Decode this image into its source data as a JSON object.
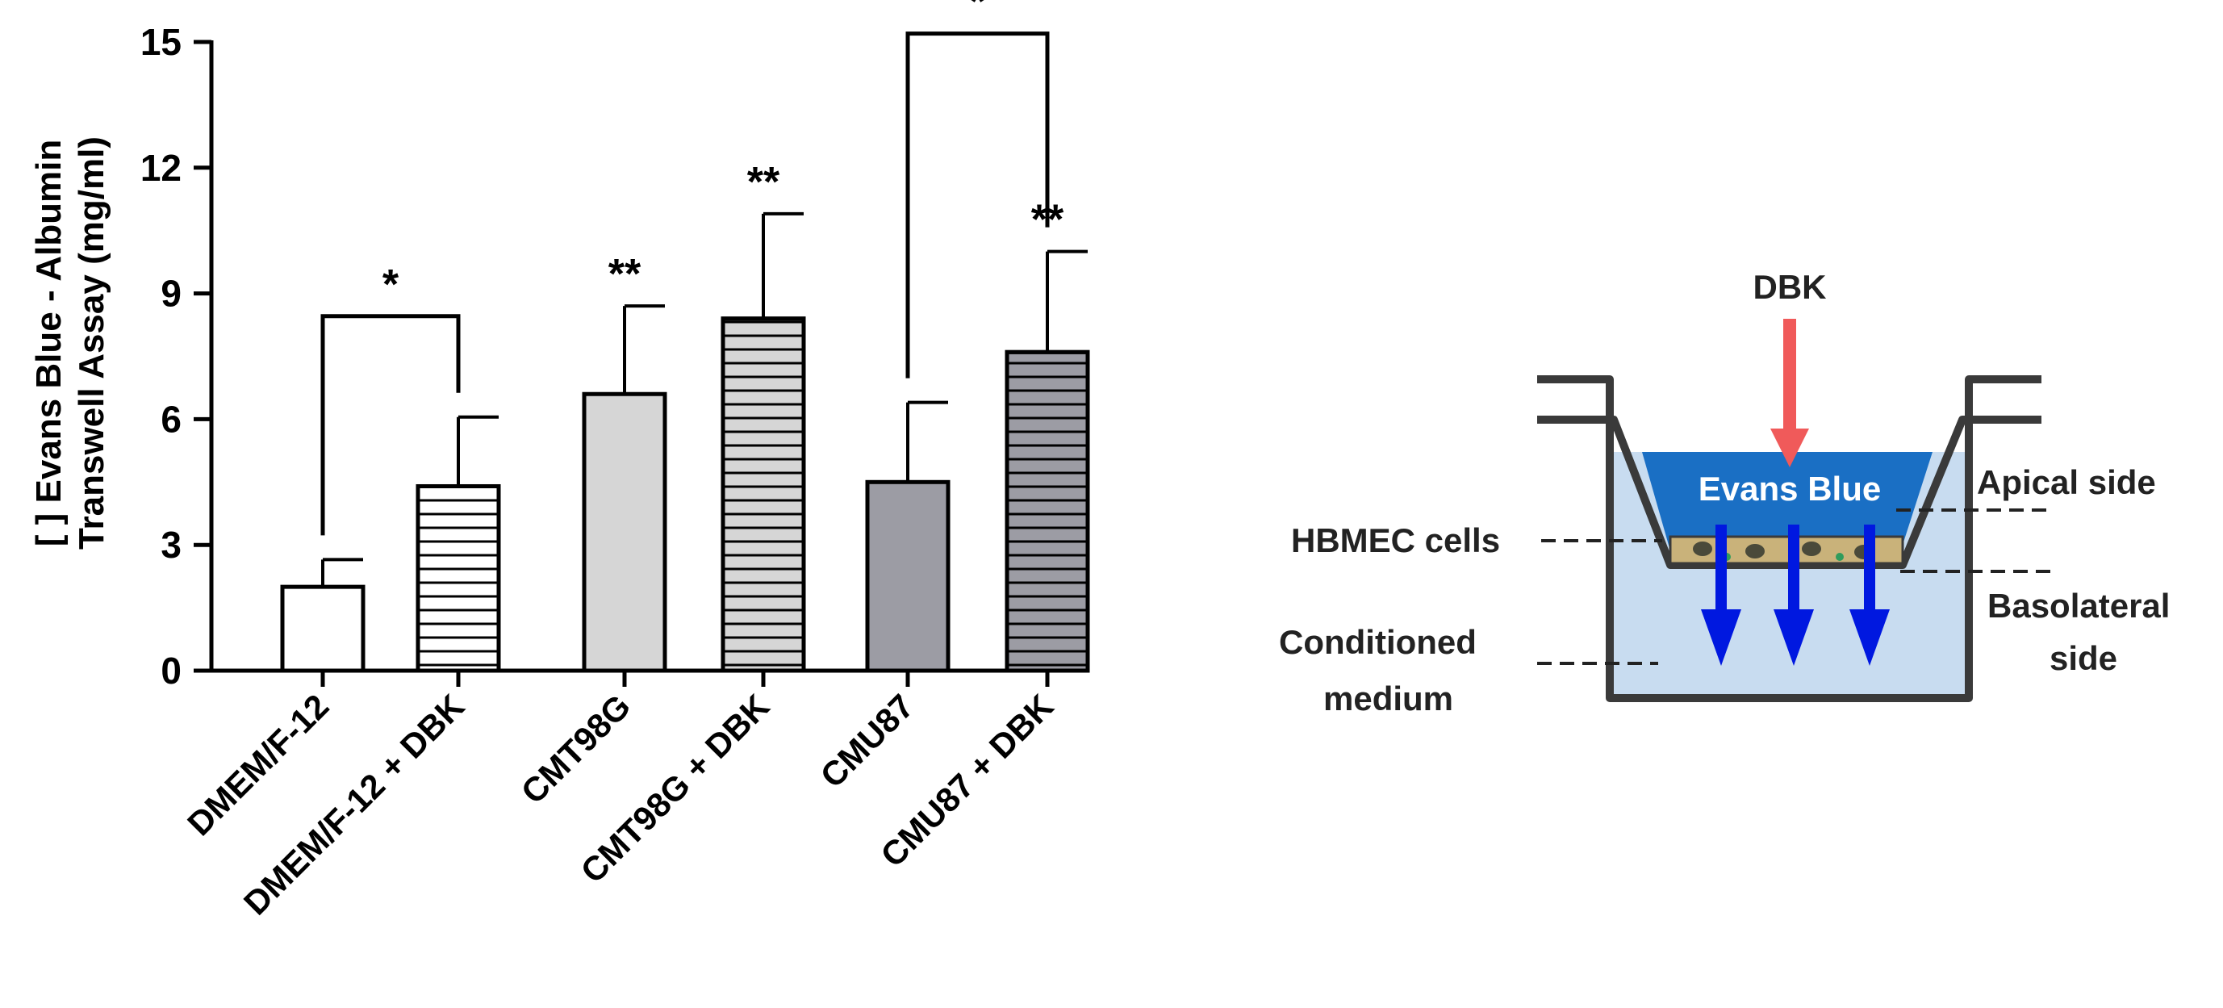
{
  "chart_data": {
    "type": "bar",
    "categories": [
      "DMEM/F-12",
      "DMEM/F-12 + DBK",
      "CMT98G",
      "CMT98G + DBK",
      "CMU87",
      "CMU87 + DBK"
    ],
    "values": [
      2.0,
      4.4,
      6.6,
      8.4,
      4.5,
      7.6
    ],
    "errors": [
      0.65,
      1.65,
      2.1,
      2.5,
      1.9,
      2.4
    ],
    "ylabel_line1": "[ ] Evans Blue - Albumin",
    "ylabel_line2": "Transwell Assay (mg/ml)",
    "ylim": [
      0,
      15
    ],
    "yticks": [
      "0",
      "3",
      "6",
      "9",
      "12",
      "15"
    ],
    "significance_marks": [
      "",
      "",
      "**",
      "**",
      "",
      "**"
    ],
    "brackets": [
      {
        "from": "DMEM/F-12",
        "to": "DMEM/F-12 + DBK",
        "label": "*"
      },
      {
        "from": "CMU87",
        "to": "CMU87 + DBK",
        "label": "*"
      }
    ],
    "bar_styles": [
      {
        "fill": "#ffffff",
        "hatch": false
      },
      {
        "fill": "#ffffff",
        "hatch": true
      },
      {
        "fill": "#d6d6d6",
        "hatch": false
      },
      {
        "fill": "#d6d6d6",
        "hatch": true
      },
      {
        "fill": "#9c9ca4",
        "hatch": false
      },
      {
        "fill": "#9c9ca4",
        "hatch": true
      }
    ],
    "grid": false
  },
  "diagram": {
    "dbk": "DBK",
    "evans_blue": "Evans Blue",
    "apical_side": "Apical side",
    "hbmec_cells": "HBMEC cells",
    "basolateral_line1": "Basolateral",
    "basolateral_line2": "side",
    "conditioned_line1": "Conditioned",
    "conditioned_line2": "medium",
    "colors": {
      "dbk_arrow": "#f05a5a",
      "evans_blue_fill": "#1a6fc4",
      "medium_fill": "#c8dcf0",
      "transport_arrow": "#0018e0",
      "cells": "#c9b27a"
    }
  }
}
